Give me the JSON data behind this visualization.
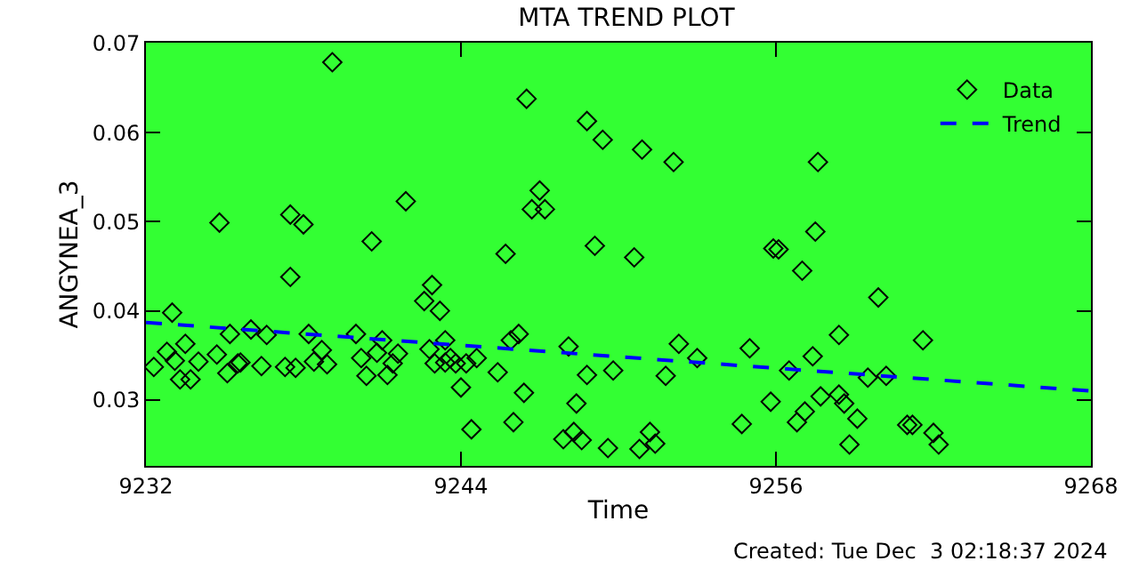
{
  "chart_data": {
    "type": "scatter",
    "title": "MTA TREND PLOT",
    "xlabel": "Time",
    "ylabel": "ANGYNEA_3",
    "annotations": [
      "Created: Tue Dec  3 02:18:37 2024"
    ],
    "xlim": [
      9232,
      9268
    ],
    "xticks": [
      9232,
      9244,
      9256,
      9268
    ],
    "ylim": [
      0.0226,
      0.0701
    ],
    "yticks": [
      0.03,
      0.04,
      0.05,
      0.06,
      0.07
    ],
    "grid": false,
    "legend": "top right",
    "series": [
      {
        "name": "Data",
        "marker": "diamond",
        "color": "#000000",
        "x": [
          9232.3,
          9233.0,
          9232.8,
          9233.1,
          9233.3,
          9233.5,
          9233.7,
          9234.0,
          9234.8,
          9234.7,
          9235.1,
          9235.2,
          9235.5,
          9235.6,
          9236.0,
          9236.4,
          9236.6,
          9237.3,
          9237.5,
          9237.5,
          9237.7,
          9238.0,
          9238.2,
          9238.4,
          9238.7,
          9238.9,
          9239.1,
          9240.0,
          9240.2,
          9240.4,
          9240.6,
          9240.8,
          9241.0,
          9241.2,
          9241.4,
          9241.6,
          9241.9,
          9242.6,
          9242.9,
          9243.2,
          9242.8,
          9243.0,
          9243.4,
          9243.4,
          9243.8,
          9244.0,
          9243.6,
          9244.2,
          9244.6,
          9244.4,
          9245.4,
          9245.7,
          9245.9,
          9246.2,
          9246.0,
          9246.4,
          9246.5,
          9247.0,
          9246.7,
          9247.2,
          9247.9,
          9248.1,
          9248.3,
          9248.4,
          9248.6,
          9248.8,
          9248.8,
          9249.1,
          9249.4,
          9249.6,
          9249.8,
          9250.6,
          9250.8,
          9250.9,
          9251.2,
          9251.4,
          9251.8,
          9252.1,
          9252.3,
          9253.0,
          9254.7,
          9255.0,
          9255.8,
          9255.9,
          9256.1,
          9256.5,
          9256.8,
          9257.0,
          9257.1,
          9257.4,
          9257.5,
          9257.6,
          9257.7,
          9258.4,
          9258.4,
          9258.6,
          9258.8,
          9259.1,
          9259.5,
          9259.9,
          9260.2,
          9261.0,
          9261.2,
          9261.6,
          9262.0,
          9262.2
        ],
        "values": [
          0.0337,
          0.0398,
          0.0354,
          0.0344,
          0.0323,
          0.0363,
          0.0323,
          0.0343,
          0.0499,
          0.0351,
          0.033,
          0.0374,
          0.0341,
          0.0342,
          0.0379,
          0.0338,
          0.0373,
          0.0337,
          0.0508,
          0.0438,
          0.0336,
          0.0497,
          0.0374,
          0.0343,
          0.0356,
          0.034,
          0.0679,
          0.0374,
          0.0347,
          0.0327,
          0.0478,
          0.0353,
          0.0367,
          0.0328,
          0.0341,
          0.0352,
          0.0523,
          0.0411,
          0.0429,
          0.04,
          0.0357,
          0.0341,
          0.0367,
          0.0342,
          0.0341,
          0.0314,
          0.0347,
          0.0341,
          0.0347,
          0.0267,
          0.0331,
          0.0464,
          0.0367,
          0.0374,
          0.0275,
          0.0308,
          0.0638,
          0.0535,
          0.0514,
          0.0514,
          0.0256,
          0.036,
          0.0264,
          0.0296,
          0.0255,
          0.0328,
          0.0613,
          0.0473,
          0.0592,
          0.0246,
          0.0333,
          0.046,
          0.0245,
          0.0581,
          0.0264,
          0.0251,
          0.0327,
          0.0567,
          0.0363,
          0.0347,
          0.0273,
          0.0358,
          0.0298,
          0.047,
          0.0469,
          0.0333,
          0.0275,
          0.0445,
          0.0287,
          0.0349,
          0.0489,
          0.0567,
          0.0304,
          0.0373,
          0.0306,
          0.0296,
          0.025,
          0.0279,
          0.0325,
          0.0415,
          0.0327,
          0.0272,
          0.0272,
          0.0367,
          0.0263,
          0.025
        ]
      },
      {
        "name": "Trend",
        "type": "line",
        "line_style": "dashed",
        "color": "#0000ff",
        "x": [
          9232,
          9268
        ],
        "values": [
          0.0387,
          0.031
        ]
      }
    ]
  }
}
